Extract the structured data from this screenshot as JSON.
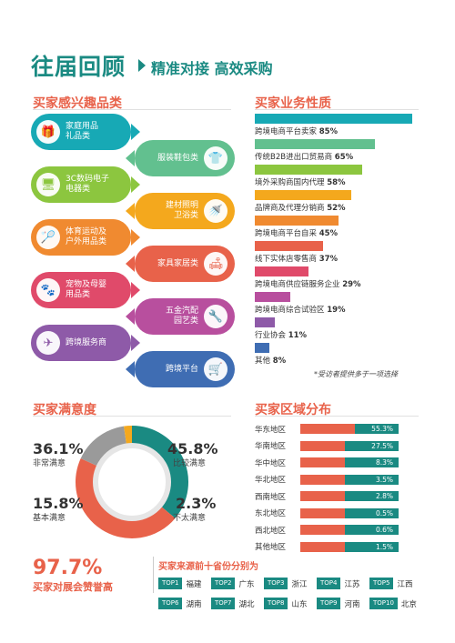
{
  "header": {
    "title": "往届回顾",
    "subtitle": "精准对接 高效采购"
  },
  "interests": {
    "title": "买家感兴趣品类",
    "items": [
      {
        "label": "家庭用品\n礼品类",
        "color": "#17a9b5",
        "icon": "gift-icon",
        "glyph": "🎁"
      },
      {
        "label": "服装鞋包类",
        "color": "#62c08f",
        "icon": "tshirt-icon",
        "glyph": "👕"
      },
      {
        "label": "3C数码电子\n电器类",
        "color": "#8cc63f",
        "icon": "device-icon",
        "glyph": "🖥"
      },
      {
        "label": "建材照明\n卫浴类",
        "color": "#f4a81d",
        "icon": "faucet-icon",
        "glyph": "🚿"
      },
      {
        "label": "体育运动及\n户外用品类",
        "color": "#f08a30",
        "icon": "shuttlecock-icon",
        "glyph": "🏸"
      },
      {
        "label": "家具家居类",
        "color": "#e8624a",
        "icon": "sofa-icon",
        "glyph": "🛋"
      },
      {
        "label": "宠物及母婴\n用品类",
        "color": "#e04a6a",
        "icon": "paw-icon",
        "glyph": "🐾"
      },
      {
        "label": "五金汽配\n园艺类",
        "color": "#b84f9e",
        "icon": "tools-icon",
        "glyph": "🔧"
      },
      {
        "label": "跨境服务商",
        "color": "#8e5aa8",
        "icon": "plane-icon",
        "glyph": "✈"
      },
      {
        "label": "跨境平台",
        "color": "#3f6db3",
        "icon": "cart-icon",
        "glyph": "🛒"
      }
    ]
  },
  "business": {
    "title": "买家业务性质",
    "note": "*受访者提供多于一项选择",
    "colors": [
      "#17a9b5",
      "#62c08f",
      "#8cc63f",
      "#f4a81d",
      "#f08a30",
      "#e8624a",
      "#e04a6a",
      "#b84f9e",
      "#8e5aa8",
      "#3f6db3"
    ]
  },
  "satisfaction": {
    "title": "买家满意度",
    "highlight_value": "97.7%",
    "highlight_label": "买家对展会赞誉高",
    "items": [
      {
        "value": "36.1%",
        "label": "非常满意"
      },
      {
        "value": "45.8%",
        "label": "比较满意"
      },
      {
        "value": "15.8%",
        "label": "基本满意"
      },
      {
        "value": "2.3%",
        "label": "不太满意"
      }
    ]
  },
  "region": {
    "title": "买家区域分布"
  },
  "top_provinces": {
    "title": "买家来源前十省份分别为",
    "items": [
      {
        "rank": "TOP1",
        "name": "福建"
      },
      {
        "rank": "TOP2",
        "name": "广东"
      },
      {
        "rank": "TOP3",
        "name": "浙江"
      },
      {
        "rank": "TOP4",
        "name": "江苏"
      },
      {
        "rank": "TOP5",
        "name": "江西"
      },
      {
        "rank": "TOP6",
        "name": "湖南"
      },
      {
        "rank": "TOP7",
        "name": "湖北"
      },
      {
        "rank": "TOP8",
        "name": "山东"
      },
      {
        "rank": "TOP9",
        "name": "河南"
      },
      {
        "rank": "TOP10",
        "name": "北京"
      }
    ]
  },
  "chart_data": [
    {
      "type": "bar",
      "title": "买家业务性质",
      "categories": [
        "跨境电商平台卖家",
        "传统B2B进出口贸易商",
        "境外采购商国内代理",
        "品牌商及代理分销商",
        "跨境电商平台自采",
        "线下实体店零售商",
        "跨境电商供应链服务企业",
        "跨境电商综合试验区",
        "行业协会",
        "其他"
      ],
      "values": [
        85,
        65,
        58,
        52,
        45,
        37,
        29,
        19,
        11,
        8
      ],
      "value_labels": [
        "85%",
        "65%",
        "58%",
        "52%",
        "45%",
        "37%",
        "29%",
        "19%",
        "11%",
        "8%"
      ],
      "ylim": [
        0,
        85
      ],
      "orientation": "horizontal"
    },
    {
      "type": "pie",
      "title": "买家满意度",
      "categories": [
        "非常满意",
        "比较满意",
        "基本满意",
        "不太满意"
      ],
      "values": [
        36.1,
        45.8,
        15.8,
        2.3
      ],
      "colors": [
        "#1a8a82",
        "#e8624a",
        "#9a9a9a",
        "#f4a81d"
      ]
    },
    {
      "type": "bar",
      "title": "买家区域分布",
      "categories": [
        "华东地区",
        "华南地区",
        "华中地区",
        "华北地区",
        "西南地区",
        "东北地区",
        "西北地区",
        "其他地区"
      ],
      "values": [
        55.3,
        27.5,
        8.3,
        3.5,
        2.8,
        0.5,
        0.6,
        1.5
      ],
      "value_labels": [
        "55.3%",
        "27.5%",
        "8.3%",
        "3.5%",
        "2.8%",
        "0.5%",
        "0.6%",
        "1.5%"
      ],
      "ylim": [
        0,
        100
      ],
      "colors": {
        "share": "#e8624a",
        "remainder": "#1a8a82"
      },
      "orientation": "horizontal"
    }
  ]
}
